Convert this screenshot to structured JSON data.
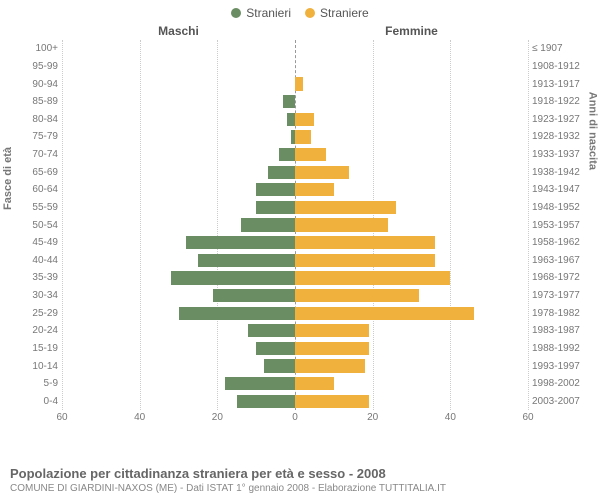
{
  "legend": {
    "male": {
      "label": "Stranieri",
      "color": "#6b8d63"
    },
    "female": {
      "label": "Straniere",
      "color": "#f0b13d"
    }
  },
  "headers": {
    "male": "Maschi",
    "female": "Femmine"
  },
  "axis_titles": {
    "left": "Fasce di età",
    "right": "Anni di nascita"
  },
  "x_axis": {
    "max": 60,
    "ticks": [
      60,
      40,
      20,
      0,
      20,
      40,
      60
    ]
  },
  "plot": {
    "grid_color": "#cccccc",
    "center_line_color": "#999999",
    "background": "#ffffff"
  },
  "caption": {
    "title": "Popolazione per cittadinanza straniera per età e sesso - 2008",
    "subtitle": "COMUNE DI GIARDINI-NAXOS (ME) - Dati ISTAT 1° gennaio 2008 - Elaborazione TUTTITALIA.IT"
  },
  "rows": [
    {
      "age": "100+",
      "years": "≤ 1907",
      "m": 0,
      "f": 0
    },
    {
      "age": "95-99",
      "years": "1908-1912",
      "m": 0,
      "f": 0
    },
    {
      "age": "90-94",
      "years": "1913-1917",
      "m": 0,
      "f": 2
    },
    {
      "age": "85-89",
      "years": "1918-1922",
      "m": 3,
      "f": 0
    },
    {
      "age": "80-84",
      "years": "1923-1927",
      "m": 2,
      "f": 5
    },
    {
      "age": "75-79",
      "years": "1928-1932",
      "m": 1,
      "f": 4
    },
    {
      "age": "70-74",
      "years": "1933-1937",
      "m": 4,
      "f": 8
    },
    {
      "age": "65-69",
      "years": "1938-1942",
      "m": 7,
      "f": 14
    },
    {
      "age": "60-64",
      "years": "1943-1947",
      "m": 10,
      "f": 10
    },
    {
      "age": "55-59",
      "years": "1948-1952",
      "m": 10,
      "f": 26
    },
    {
      "age": "50-54",
      "years": "1953-1957",
      "m": 14,
      "f": 24
    },
    {
      "age": "45-49",
      "years": "1958-1962",
      "m": 28,
      "f": 36
    },
    {
      "age": "40-44",
      "years": "1963-1967",
      "m": 25,
      "f": 36
    },
    {
      "age": "35-39",
      "years": "1968-1972",
      "m": 32,
      "f": 40
    },
    {
      "age": "30-34",
      "years": "1973-1977",
      "m": 21,
      "f": 32
    },
    {
      "age": "25-29",
      "years": "1978-1982",
      "m": 30,
      "f": 46
    },
    {
      "age": "20-24",
      "years": "1983-1987",
      "m": 12,
      "f": 19
    },
    {
      "age": "15-19",
      "years": "1988-1992",
      "m": 10,
      "f": 19
    },
    {
      "age": "10-14",
      "years": "1993-1997",
      "m": 8,
      "f": 18
    },
    {
      "age": "5-9",
      "years": "1998-2002",
      "m": 18,
      "f": 10
    },
    {
      "age": "0-4",
      "years": "2003-2007",
      "m": 15,
      "f": 19
    }
  ]
}
